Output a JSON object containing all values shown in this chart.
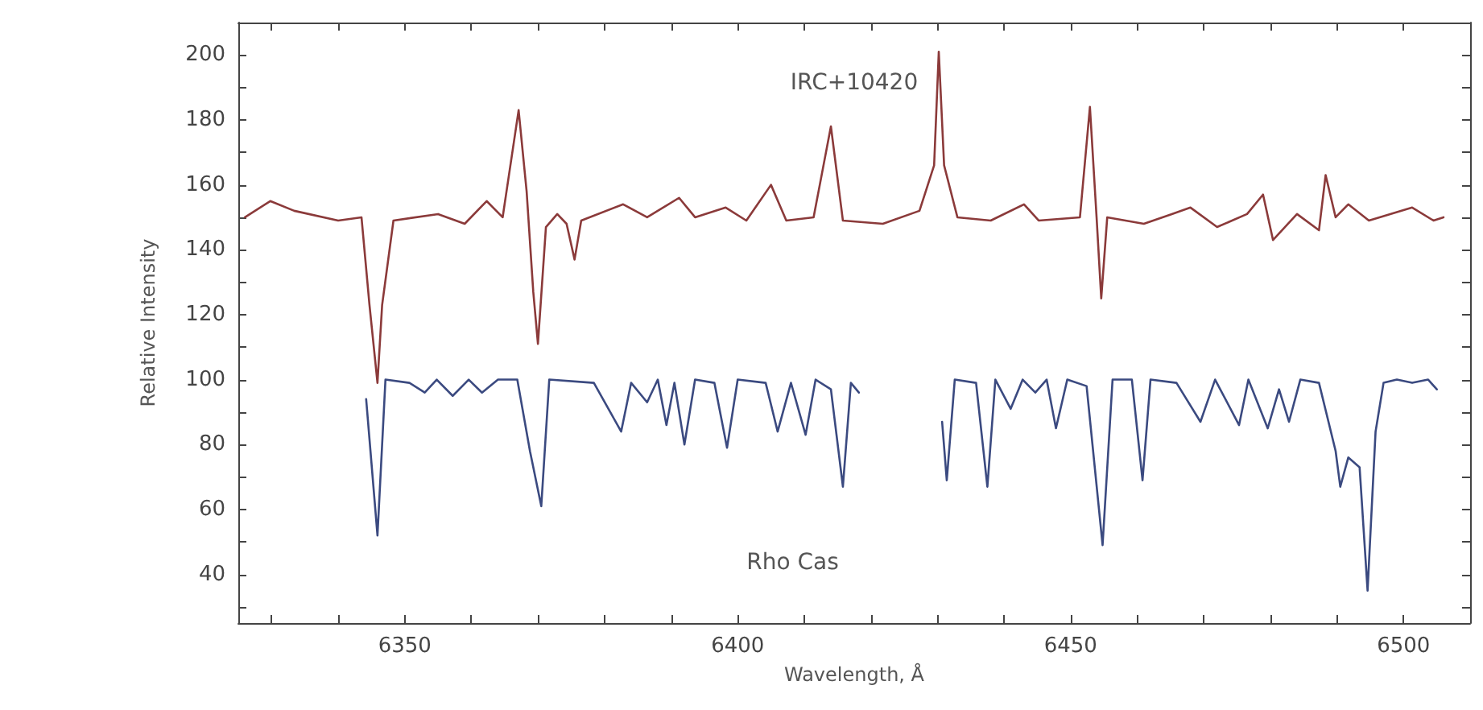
{
  "chart_data": {
    "type": "line",
    "xlabel": "Wavelength, Å",
    "ylabel": "Relative Intensity",
    "xlim": [
      6325,
      6510
    ],
    "ylim": [
      25,
      210
    ],
    "xticks": [
      {
        "value": 6330,
        "label": null
      },
      {
        "value": 6340,
        "label": null
      },
      6350,
      {
        "value": 6360,
        "label": null
      },
      {
        "value": 6370,
        "label": null
      },
      {
        "value": 6380,
        "label": null
      },
      {
        "value": 6390,
        "label": null
      },
      6400,
      {
        "value": 6410,
        "label": null
      },
      {
        "value": 6420,
        "label": null
      },
      {
        "value": 6430,
        "label": null
      },
      {
        "value": 6440,
        "label": null
      },
      6450,
      {
        "value": 6460,
        "label": null
      },
      {
        "value": 6470,
        "label": null
      },
      {
        "value": 6480,
        "label": null
      },
      {
        "value": 6490,
        "label": null
      },
      6500
    ],
    "yticks": [
      {
        "value": 30,
        "label": null
      },
      40,
      {
        "value": 50,
        "label": null
      },
      60,
      {
        "value": 70,
        "label": null
      },
      80,
      {
        "value": 90,
        "label": null
      },
      100,
      {
        "value": 110,
        "label": null
      },
      120,
      {
        "value": 130,
        "label": null
      },
      140,
      {
        "value": 150,
        "label": null
      },
      160,
      {
        "value": 170,
        "label": null
      },
      180,
      {
        "value": 190,
        "label": null
      },
      200
    ],
    "grid": false,
    "marker": "none",
    "line_style": "solid",
    "annotations": [
      "IRC+10420",
      "Rho Cas"
    ],
    "series": [
      {
        "color": "#8b3a3a",
        "x": [
          6326,
          6329.8,
          6333.4,
          6340,
          6343.5,
          6344.7,
          6345.9,
          6346.6,
          6348.3,
          6355,
          6359,
          6362.3,
          6364.7,
          6367.1,
          6368.3,
          6369.3,
          6370,
          6371.2,
          6372.9,
          6374.3,
          6375.5,
          6376.5,
          6382.8,
          6386.4,
          6391.2,
          6393.6,
          6398.2,
          6401.3,
          6405,
          6407.3,
          6411.4,
          6414,
          6415.8,
          6421.8,
          6427.3,
          6429.5,
          6430.2,
          6431,
          6433,
          6438,
          6443,
          6445.2,
          6451.4,
          6452.9,
          6453.9,
          6454.6,
          6455.5,
          6461,
          6465.2,
          6468,
          6472,
          6476.5,
          6478.9,
          6480.4,
          6484,
          6487.3,
          6488.3,
          6489.8,
          6491.7,
          6494.8,
          6501.3,
          6504.5,
          6506
        ],
        "values": [
          150,
          155,
          152,
          149,
          150,
          123,
          99,
          123,
          149,
          151,
          148,
          155,
          150,
          183,
          158,
          127,
          111,
          147,
          151,
          148,
          137,
          149,
          154,
          150,
          156,
          150,
          153,
          149,
          160,
          149,
          150,
          178,
          149,
          148,
          152,
          166,
          201,
          166,
          150,
          149,
          154,
          149,
          150,
          184,
          150,
          125,
          150,
          148,
          151,
          153,
          147,
          151,
          157,
          143,
          151,
          146,
          163,
          150,
          154,
          149,
          153,
          149,
          150
        ]
      },
      {
        "color": "#3b4a80",
        "x": [
          6344.2,
          6345.9,
          6347.1,
          6350.7,
          6353,
          6354.8,
          6357.2,
          6359.6,
          6361.6,
          6364,
          6366.9,
          6368.8,
          6370.5,
          6371.7,
          6378.4,
          6382.5,
          6384,
          6386.4,
          6388,
          6389.3,
          6390.5,
          6392,
          6393.6,
          6396.5,
          6398.4,
          6400,
          6404.2,
          6406,
          6408,
          6410.2,
          6411.7,
          6414,
          6415.8,
          6417,
          6418.2,
          6424,
          6430.7,
          6431.4,
          6432.6,
          6435.8,
          6437.5,
          6438.7,
          6441,
          6442.8,
          6444.7,
          6446.4,
          6447.8,
          6449.5,
          6452.4,
          6454.8,
          6456.3,
          6459.2,
          6460.8,
          6462,
          6465.9,
          6469.5,
          6471.7,
          6475.3,
          6476.7,
          6479.6,
          6481.3,
          6482.8,
          6484.5,
          6487.3,
          6489.8,
          6490.5,
          6491.7,
          6493.4,
          6494.6,
          6495.8,
          6497,
          6499,
          6501.3,
          6503.7,
          6505
        ],
        "values": [
          94,
          52,
          100,
          99,
          96,
          100,
          95,
          100,
          96,
          100,
          100,
          78,
          61,
          100,
          99,
          84,
          99,
          93,
          100,
          86,
          99,
          80,
          100,
          99,
          79,
          100,
          99,
          84,
          99,
          83,
          100,
          97,
          67,
          99,
          96,
          null,
          87,
          69,
          100,
          99,
          67,
          100,
          91,
          100,
          96,
          100,
          85,
          100,
          98,
          49,
          100,
          100,
          69,
          100,
          99,
          87,
          100,
          86,
          100,
          85,
          97,
          87,
          100,
          99,
          78,
          67,
          76,
          73,
          35,
          84,
          99,
          100,
          99,
          100,
          97
        ]
      }
    ]
  }
}
